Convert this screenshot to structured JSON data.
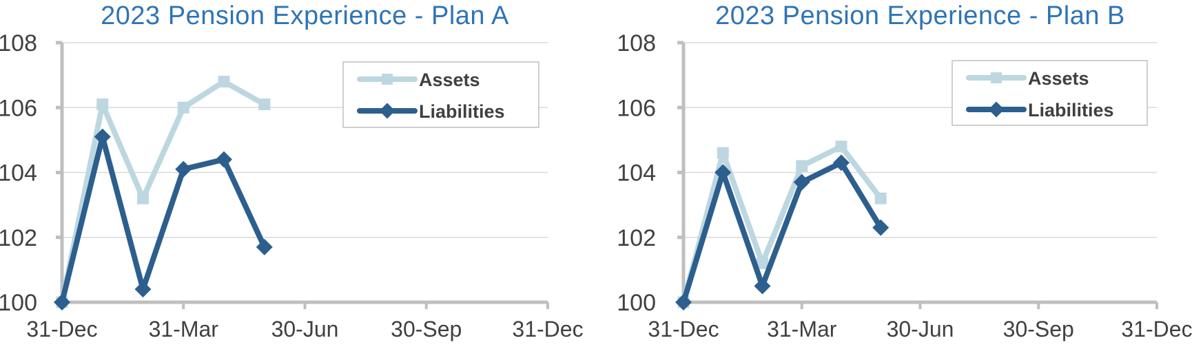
{
  "theme": {
    "background": "#ffffff",
    "title_color": "#2E74B5",
    "axis_color": "#BFBFBF",
    "grid_color": "#D9D9D9",
    "tick_label_color": "#404040",
    "legend_text_color": "#404040",
    "legend_border_color": "#BFBFBF",
    "legend_bg": "#FFFFFF",
    "assets_color": "#BDD7E1",
    "liabilities_color": "#2C5F8D"
  },
  "chart_data": [
    {
      "type": "line",
      "title": "2023 Pension Experience - Plan A",
      "x": [
        0,
        1,
        2,
        3,
        4,
        5
      ],
      "xlim": [
        0,
        12
      ],
      "ylim": [
        100,
        108
      ],
      "y_ticks": [
        100,
        102,
        104,
        106,
        108
      ],
      "x_axis": {
        "tick_months": [
          0,
          3,
          6,
          9,
          12
        ],
        "tick_labels": [
          "31-Dec",
          "31-Mar",
          "30-Jun",
          "30-Sep",
          "31-Dec"
        ]
      },
      "grid": true,
      "legend_position": "upper-right-inside",
      "series": [
        {
          "name": "Assets",
          "marker": "square",
          "color": "#BDD7E1",
          "values": [
            100.0,
            106.1,
            103.2,
            106.0,
            106.8,
            106.1
          ]
        },
        {
          "name": "Liabilities",
          "marker": "diamond",
          "color": "#2C5F8D",
          "values": [
            100.0,
            105.1,
            100.4,
            104.1,
            104.4,
            101.7
          ]
        }
      ]
    },
    {
      "type": "line",
      "title": "2023 Pension Experience - Plan B",
      "x": [
        0,
        1,
        2,
        3,
        4,
        5
      ],
      "xlim": [
        0,
        12
      ],
      "ylim": [
        100,
        108
      ],
      "y_ticks": [
        100,
        102,
        104,
        106,
        108
      ],
      "x_axis": {
        "tick_months": [
          0,
          3,
          6,
          9,
          12
        ],
        "tick_labels": [
          "31-Dec",
          "31-Mar",
          "30-Jun",
          "30-Sep",
          "31-Dec"
        ]
      },
      "grid": true,
      "legend_position": "upper-right-inside",
      "series": [
        {
          "name": "Assets",
          "marker": "square",
          "color": "#BDD7E1",
          "values": [
            100.0,
            104.6,
            101.2,
            104.2,
            104.8,
            103.2
          ]
        },
        {
          "name": "Liabilities",
          "marker": "diamond",
          "color": "#2C5F8D",
          "values": [
            100.0,
            104.0,
            100.5,
            103.7,
            104.3,
            102.3
          ]
        }
      ]
    }
  ]
}
